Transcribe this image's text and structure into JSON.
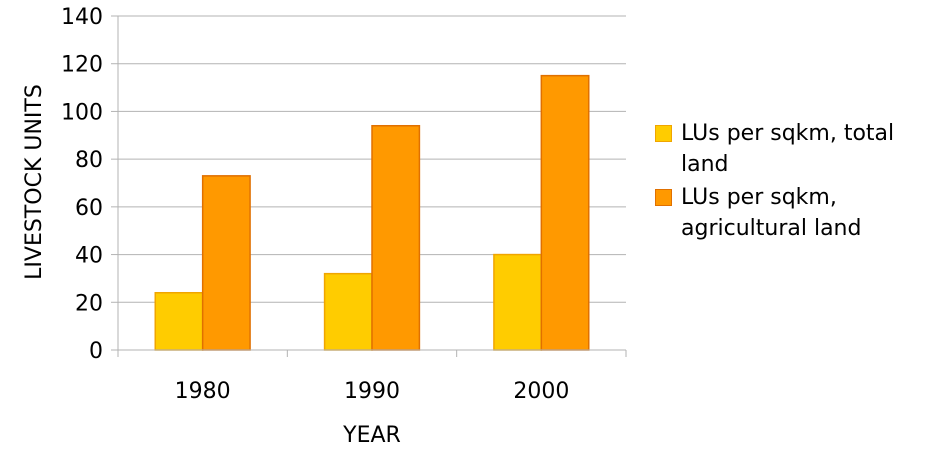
{
  "chart_data": {
    "type": "bar",
    "categories": [
      "1980",
      "1990",
      "2000"
    ],
    "series": [
      {
        "name": "LUs per sqkm, total land",
        "values": [
          24,
          32,
          40
        ],
        "color": "#ffcc00",
        "stroke": "#f0a500"
      },
      {
        "name": "LUs per sqkm, agricultural land",
        "values": [
          73,
          94,
          115
        ],
        "color": "#ff9900",
        "stroke": "#e07000"
      }
    ],
    "title": "",
    "xlabel": "YEAR",
    "ylabel": "LIVESTOCK UNITS",
    "ylim": [
      0,
      140
    ],
    "yticks": [
      "0",
      "20",
      "40",
      "60",
      "80",
      "100",
      "120",
      "140"
    ],
    "grid": true,
    "gridColor": "#b3b3b3",
    "axisColor": "#b3b3b3",
    "legend_position": "right"
  },
  "legend": {
    "items": [
      {
        "label_line1": "LUs per sqkm, total",
        "label_line2": "land"
      },
      {
        "label_line1": "LUs per sqkm,",
        "label_line2": "agricultural land"
      }
    ]
  }
}
